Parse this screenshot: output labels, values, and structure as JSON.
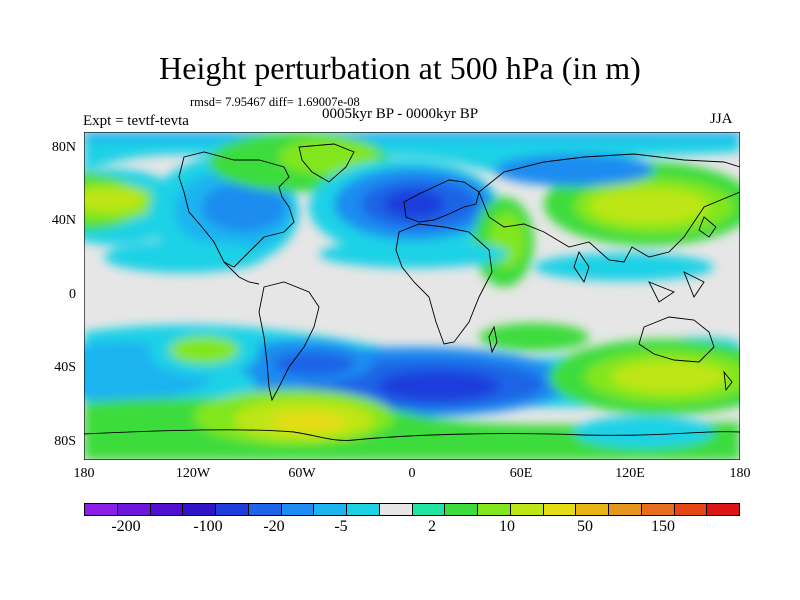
{
  "title": "Height perturbation at 500 hPa (in m)",
  "stats": "rmsd= 7.95467 diff= 1.69007e-08",
  "period": "0005kyr BP - 0000kyr BP",
  "experiment": "Expt = tevtf-tevta",
  "season": "JJA",
  "lat_ticks": [
    "80N",
    "40N",
    "0",
    "40S",
    "80S"
  ],
  "lon_ticks": [
    "180",
    "120W",
    "60W",
    "0",
    "60E",
    "120E",
    "180"
  ],
  "legend": {
    "colors": [
      "#8c1ee6",
      "#6e16dc",
      "#5010d2",
      "#3214c8",
      "#1e3cdc",
      "#1e64e6",
      "#1e8cf0",
      "#1eb4f0",
      "#1ed2e6",
      "#e6e6e6",
      "#1ee6a0",
      "#3cdc3c",
      "#82e61e",
      "#bee614",
      "#e6dc14",
      "#e6b414",
      "#e6961e",
      "#e66e1e",
      "#e64614",
      "#dc1414"
    ],
    "labels": [
      "-200",
      "-100",
      "-20",
      "-5",
      "2",
      "10",
      "50",
      "150"
    ]
  }
}
